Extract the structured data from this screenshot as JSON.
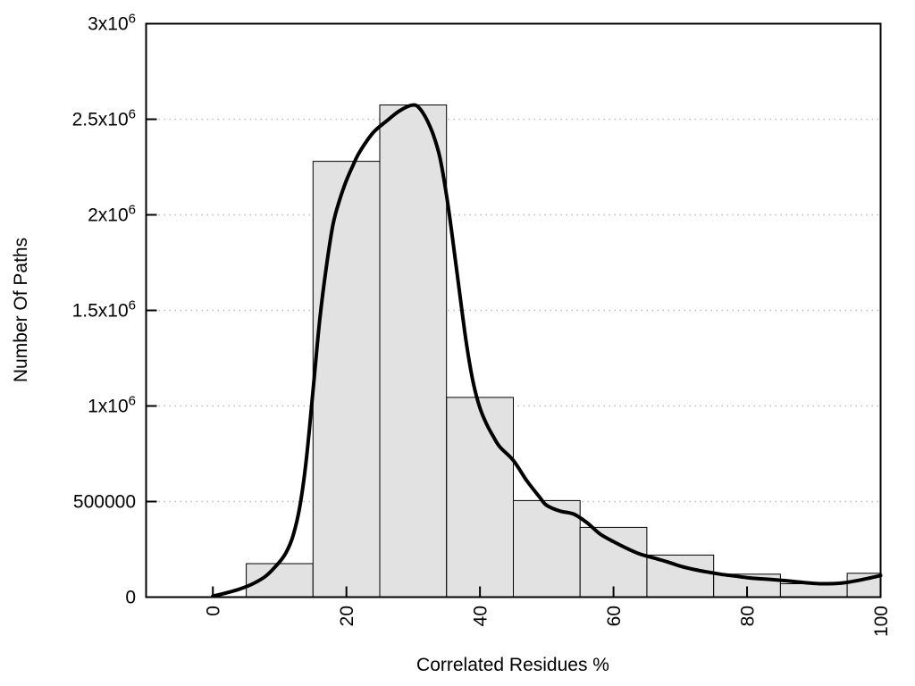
{
  "chart_data": {
    "type": "bar",
    "subtype": "histogram-with-smoothed-line",
    "title": "",
    "xlabel": "Correlated Residues %",
    "ylabel": "Number Of Paths",
    "xlim": [
      -10,
      100
    ],
    "ylim": [
      0,
      3000000
    ],
    "grid": "horizontal-dotted",
    "legend": "none",
    "bars": {
      "bin_edges": [
        5,
        15,
        25,
        35,
        45,
        55,
        65,
        75,
        85,
        95,
        100
      ],
      "counts": [
        175000,
        2280000,
        2575000,
        1045000,
        505000,
        365000,
        220000,
        120000,
        70000,
        125000
      ]
    },
    "x_ticks": [
      {
        "value": 0,
        "label": "0"
      },
      {
        "value": 20,
        "label": "20"
      },
      {
        "value": 40,
        "label": "40"
      },
      {
        "value": 60,
        "label": "60"
      },
      {
        "value": 80,
        "label": "80"
      },
      {
        "value": 100,
        "label": "100"
      }
    ],
    "y_ticks": [
      {
        "value": 0,
        "label": "0",
        "exp": "",
        "grid": false
      },
      {
        "value": 500000,
        "label": "500000",
        "exp": "",
        "grid": true
      },
      {
        "value": 1000000,
        "label": "1x10",
        "exp": "6",
        "grid": true
      },
      {
        "value": 1500000,
        "label": "1.5x10",
        "exp": "6",
        "grid": true
      },
      {
        "value": 2000000,
        "label": "2x10",
        "exp": "6",
        "grid": true
      },
      {
        "value": 2500000,
        "label": "2.5x10",
        "exp": "6",
        "grid": true
      },
      {
        "value": 3000000,
        "label": "3x10",
        "exp": "6",
        "grid": false
      }
    ],
    "smooth_line": {
      "points": [
        [
          0,
          5000
        ],
        [
          2,
          22000
        ],
        [
          4,
          42000
        ],
        [
          6,
          70000
        ],
        [
          8,
          112000
        ],
        [
          10,
          185000
        ],
        [
          11,
          235000
        ],
        [
          12,
          320000
        ],
        [
          13,
          470000
        ],
        [
          14,
          720000
        ],
        [
          15,
          1080000
        ],
        [
          16,
          1450000
        ],
        [
          17,
          1730000
        ],
        [
          18,
          1950000
        ],
        [
          19,
          2080000
        ],
        [
          20,
          2180000
        ],
        [
          21,
          2260000
        ],
        [
          22,
          2330000
        ],
        [
          24,
          2430000
        ],
        [
          26,
          2490000
        ],
        [
          28,
          2545000
        ],
        [
          30,
          2575000
        ],
        [
          31,
          2555000
        ],
        [
          32,
          2500000
        ],
        [
          33,
          2420000
        ],
        [
          34,
          2300000
        ],
        [
          35,
          2100000
        ],
        [
          36,
          1850000
        ],
        [
          37,
          1580000
        ],
        [
          38,
          1320000
        ],
        [
          39,
          1120000
        ],
        [
          40,
          990000
        ],
        [
          41,
          905000
        ],
        [
          42,
          840000
        ],
        [
          43,
          785000
        ],
        [
          45,
          715000
        ],
        [
          47,
          610000
        ],
        [
          49,
          520000
        ],
        [
          50,
          480000
        ],
        [
          52,
          450000
        ],
        [
          54,
          435000
        ],
        [
          56,
          390000
        ],
        [
          58,
          330000
        ],
        [
          60,
          290000
        ],
        [
          62,
          255000
        ],
        [
          64,
          225000
        ],
        [
          66,
          205000
        ],
        [
          68,
          185000
        ],
        [
          70,
          162000
        ],
        [
          72,
          145000
        ],
        [
          74,
          132000
        ],
        [
          76,
          120000
        ],
        [
          78,
          111000
        ],
        [
          80,
          102000
        ],
        [
          82,
          96000
        ],
        [
          84,
          91000
        ],
        [
          86,
          85000
        ],
        [
          88,
          78000
        ],
        [
          90,
          72000
        ],
        [
          92,
          70000
        ],
        [
          94,
          73000
        ],
        [
          96,
          83000
        ],
        [
          98,
          97000
        ],
        [
          100,
          113000
        ]
      ]
    },
    "colors": {
      "background": "#ffffff",
      "bar_fill": "#e2e2e2",
      "bar_stroke": "#000000",
      "line": "#000000",
      "grid": "#bdbdbd",
      "axis": "#000000",
      "text": "#000000"
    }
  }
}
